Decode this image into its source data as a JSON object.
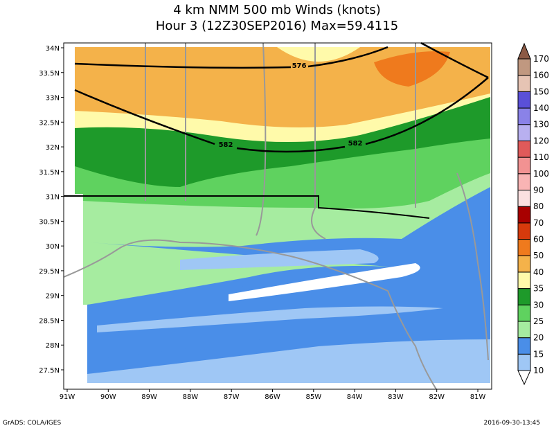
{
  "title": {
    "line1": "4 km NMM 500 mb Winds (knots)",
    "line2": "Hour 3 (12Z30SEP2016) Max=59.4115"
  },
  "lat_labels": [
    "34N",
    "33.5N",
    "33N",
    "32.5N",
    "32N",
    "31.5N",
    "31N",
    "30.5N",
    "30N",
    "29.5N",
    "29N",
    "28.5N",
    "28N",
    "27.5N"
  ],
  "lon_labels": [
    "91W",
    "90W",
    "89W",
    "88W",
    "87W",
    "86W",
    "85W",
    "84W",
    "83W",
    "82W",
    "81W"
  ],
  "colorbar": {
    "levels": [
      10,
      15,
      20,
      25,
      30,
      35,
      40,
      50,
      60,
      70,
      80,
      90,
      100,
      110,
      120,
      130,
      140,
      150,
      160,
      170
    ],
    "colors": [
      "#ffffff",
      "#9fc7f5",
      "#4a8ee8",
      "#a6eca0",
      "#5fd25f",
      "#1e9a2a",
      "#fffaaa",
      "#f4b24a",
      "#ef7a1d",
      "#d63a0c",
      "#a80000",
      "#fbe0e0",
      "#f9b4b4",
      "#f29292",
      "#e05a5a",
      "#b8b0f0",
      "#8a82e8",
      "#5a50d8",
      "#e6c4b4",
      "#c09880",
      "#8c5a45"
    ]
  },
  "contour_labels": [
    "576",
    "582",
    "582"
  ],
  "footer": {
    "left": "GrADS: COLA/IGES",
    "right": "2016-09-30-13:45"
  }
}
